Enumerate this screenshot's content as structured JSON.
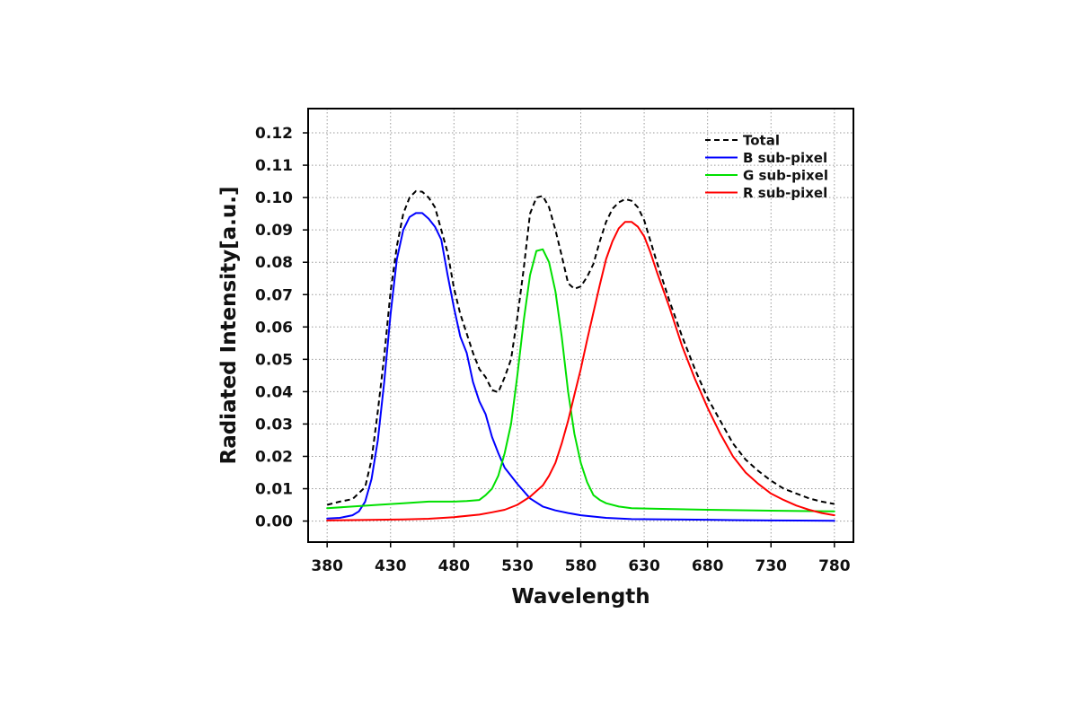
{
  "chart_data": {
    "type": "line",
    "title": "",
    "xlabel": "Wavelength",
    "ylabel": "Radiated Intensity[a.u.]",
    "xlim": [
      365,
      795
    ],
    "ylim": [
      -0.0065,
      0.1275
    ],
    "xticks": [
      380,
      430,
      480,
      530,
      580,
      630,
      680,
      730,
      780
    ],
    "yticks": [
      0.0,
      0.01,
      0.02,
      0.03,
      0.04,
      0.05,
      0.06,
      0.07,
      0.08,
      0.09,
      0.1,
      0.11,
      0.12
    ],
    "ytick_labels": [
      "0.00",
      "0.01",
      "0.02",
      "0.03",
      "0.04",
      "0.05",
      "0.06",
      "0.07",
      "0.08",
      "0.09",
      "0.10",
      "0.11",
      "0.12"
    ],
    "grid": true,
    "legend_position": "top-right",
    "series": [
      {
        "name": "Total",
        "color": "#000000",
        "style": "dashed",
        "x": [
          380,
          390,
          400,
          410,
          415,
          420,
          425,
          430,
          435,
          440,
          445,
          450,
          455,
          460,
          465,
          470,
          475,
          480,
          485,
          490,
          495,
          500,
          505,
          510,
          515,
          520,
          525,
          530,
          535,
          540,
          545,
          550,
          555,
          560,
          565,
          570,
          575,
          580,
          585,
          590,
          595,
          600,
          605,
          610,
          615,
          620,
          625,
          630,
          640,
          650,
          660,
          670,
          680,
          690,
          700,
          710,
          720,
          730,
          740,
          750,
          760,
          770,
          780
        ],
        "y": [
          0.005,
          0.006,
          0.0068,
          0.0105,
          0.019,
          0.034,
          0.051,
          0.071,
          0.085,
          0.095,
          0.1,
          0.102,
          0.1018,
          0.1,
          0.097,
          0.09,
          0.083,
          0.072,
          0.064,
          0.058,
          0.052,
          0.047,
          0.0445,
          0.0405,
          0.0398,
          0.0445,
          0.05,
          0.063,
          0.078,
          0.095,
          0.1,
          0.1005,
          0.097,
          0.09,
          0.082,
          0.0735,
          0.0718,
          0.0725,
          0.0755,
          0.0795,
          0.0865,
          0.0925,
          0.0965,
          0.0985,
          0.0995,
          0.099,
          0.097,
          0.093,
          0.08,
          0.068,
          0.057,
          0.047,
          0.038,
          0.031,
          0.024,
          0.019,
          0.0155,
          0.0125,
          0.01,
          0.0085,
          0.007,
          0.006,
          0.0053
        ]
      },
      {
        "name": "B sub-pixel",
        "color": "#0000ff",
        "style": "solid",
        "x": [
          380,
          390,
          400,
          405,
          410,
          415,
          420,
          425,
          430,
          435,
          440,
          445,
          450,
          455,
          460,
          465,
          470,
          475,
          480,
          485,
          490,
          495,
          500,
          505,
          510,
          515,
          520,
          530,
          540,
          550,
          560,
          570,
          580,
          600,
          620,
          650,
          680,
          700,
          730,
          780
        ],
        "y": [
          0.0008,
          0.001,
          0.0018,
          0.003,
          0.006,
          0.013,
          0.025,
          0.043,
          0.064,
          0.081,
          0.09,
          0.094,
          0.0952,
          0.0952,
          0.0935,
          0.091,
          0.087,
          0.076,
          0.066,
          0.057,
          0.052,
          0.043,
          0.037,
          0.033,
          0.026,
          0.021,
          0.0165,
          0.0115,
          0.007,
          0.0045,
          0.0033,
          0.0025,
          0.0018,
          0.001,
          0.0006,
          0.0005,
          0.0004,
          0.0003,
          0.0002,
          0.0001
        ]
      },
      {
        "name": "G sub-pixel",
        "color": "#00e000",
        "style": "solid",
        "x": [
          380,
          400,
          420,
          440,
          460,
          480,
          490,
          500,
          505,
          510,
          515,
          520,
          525,
          530,
          535,
          540,
          545,
          550,
          555,
          560,
          565,
          570,
          575,
          580,
          585,
          590,
          595,
          600,
          610,
          620,
          640,
          680,
          730,
          780
        ],
        "y": [
          0.004,
          0.0045,
          0.005,
          0.0055,
          0.006,
          0.006,
          0.0062,
          0.0065,
          0.008,
          0.01,
          0.014,
          0.021,
          0.03,
          0.045,
          0.062,
          0.076,
          0.0835,
          0.084,
          0.08,
          0.071,
          0.057,
          0.04,
          0.027,
          0.018,
          0.012,
          0.008,
          0.0065,
          0.0055,
          0.0045,
          0.004,
          0.0038,
          0.0035,
          0.0032,
          0.003
        ]
      },
      {
        "name": "R sub-pixel",
        "color": "#ff0000",
        "style": "solid",
        "x": [
          380,
          400,
          420,
          440,
          460,
          480,
          500,
          510,
          520,
          530,
          540,
          550,
          555,
          560,
          565,
          570,
          575,
          580,
          585,
          590,
          595,
          600,
          605,
          610,
          615,
          620,
          625,
          630,
          635,
          640,
          650,
          660,
          670,
          680,
          690,
          700,
          710,
          720,
          730,
          740,
          750,
          760,
          770,
          780
        ],
        "y": [
          0.0002,
          0.0003,
          0.0004,
          0.0005,
          0.0007,
          0.0012,
          0.002,
          0.0027,
          0.0035,
          0.005,
          0.0075,
          0.011,
          0.014,
          0.018,
          0.024,
          0.031,
          0.039,
          0.047,
          0.056,
          0.0645,
          0.073,
          0.081,
          0.0865,
          0.0905,
          0.0925,
          0.0925,
          0.091,
          0.088,
          0.083,
          0.077,
          0.066,
          0.054,
          0.044,
          0.035,
          0.027,
          0.02,
          0.015,
          0.0115,
          0.0085,
          0.0065,
          0.0048,
          0.0035,
          0.0025,
          0.0018
        ]
      }
    ]
  }
}
